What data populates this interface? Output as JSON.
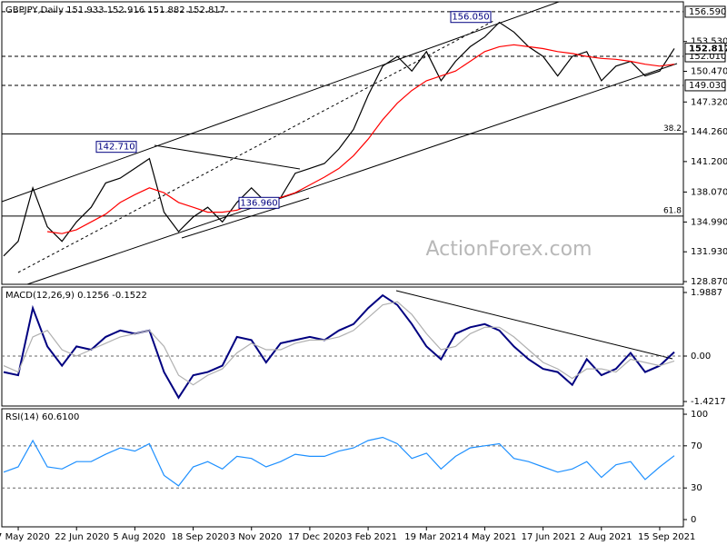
{
  "chart_data": [
    {
      "type": "line",
      "title": "GBPJPY,Daily  151.933 152.916 151.882 152.817",
      "watermark": "ActionForex.com",
      "ylim": [
        128.59,
        157.61
      ],
      "yticks": [
        {
          "value": 153.53,
          "label": "153.530"
        },
        {
          "value": 150.47,
          "label": "150.470"
        },
        {
          "value": 147.32,
          "label": "147.320"
        },
        {
          "value": 144.26,
          "label": "144.260"
        },
        {
          "value": 141.2,
          "label": "141.200"
        },
        {
          "value": 138.07,
          "label": "138.070"
        },
        {
          "value": 134.99,
          "label": "134.990"
        },
        {
          "value": 131.93,
          "label": "131.930"
        },
        {
          "value": 128.87,
          "label": "128.870"
        }
      ],
      "series": [
        {
          "color": "#000000",
          "values": [
            131.5,
            133.0,
            138.5,
            134.5,
            133.0,
            135.0,
            136.5,
            139.0,
            139.5,
            140.5,
            141.5,
            136.0,
            134.0,
            135.5,
            136.5,
            135.0,
            137.0,
            138.5,
            137.0,
            137.5,
            140.0,
            140.5,
            141.0,
            142.5,
            144.5,
            148.0,
            151.0,
            152.0,
            150.5,
            152.5,
            149.5,
            151.5,
            153.0,
            154.0,
            155.5,
            154.5,
            153.0,
            152.0,
            150.0,
            152.0,
            152.5,
            149.5,
            151.0,
            151.5,
            150.0,
            150.5,
            152.817
          ]
        },
        {
          "color": "#ff0000",
          "values": [
            null,
            null,
            null,
            134.0,
            133.8,
            134.2,
            135.0,
            135.8,
            137.0,
            137.8,
            138.5,
            138.0,
            137.0,
            136.5,
            136.0,
            136.0,
            136.2,
            136.8,
            137.2,
            137.5,
            138.0,
            138.8,
            139.6,
            140.5,
            141.8,
            143.5,
            145.5,
            147.2,
            148.5,
            149.5,
            150.0,
            150.5,
            151.5,
            152.5,
            153.0,
            153.2,
            153.0,
            152.8,
            152.5,
            152.3,
            152.0,
            151.8,
            151.7,
            151.5,
            151.2,
            151.0,
            151.2
          ]
        }
      ],
      "levels": [
        {
          "value": 156.59,
          "label": "156.590"
        },
        {
          "value": 152.01,
          "label": "152.010"
        },
        {
          "value": 149.03,
          "label": "149.030"
        }
      ],
      "fib_levels": [
        {
          "value": 144.05,
          "ratio": 38.2
        },
        {
          "value": 135.6,
          "ratio": 61.8
        }
      ],
      "annotations": [
        {
          "value": 156.05,
          "label": "156.050"
        },
        {
          "value": 142.71,
          "label": "142.710"
        },
        {
          "value": 136.96,
          "label": "136.960"
        }
      ]
    },
    {
      "type": "line",
      "title": "MACD(12,26,9) 0.1256 -0.1522",
      "ylim": [
        -1.5625,
        2.159
      ],
      "grid": true,
      "yticks": [
        1.9887,
        {
          "value": 0,
          "label": "0.00"
        },
        -1.4217
      ],
      "series": [
        {
          "color": "#000080",
          "values": [
            -0.5,
            -0.6,
            1.5,
            0.3,
            -0.3,
            0.3,
            0.2,
            0.6,
            0.8,
            0.7,
            0.8,
            -0.5,
            -1.3,
            -0.6,
            -0.5,
            -0.3,
            0.6,
            0.5,
            -0.2,
            0.4,
            0.5,
            0.6,
            0.5,
            0.8,
            1.0,
            1.5,
            1.9,
            1.6,
            1.0,
            0.3,
            -0.1,
            0.7,
            0.9,
            1.0,
            0.8,
            0.3,
            -0.1,
            -0.4,
            -0.5,
            -0.9,
            -0.1,
            -0.6,
            -0.4,
            0.1,
            -0.5,
            -0.3,
            0.1256
          ]
        },
        {
          "color": "#b0b0b0",
          "values": [
            -0.3,
            -0.5,
            0.6,
            0.8,
            0.2,
            0.0,
            0.2,
            0.4,
            0.6,
            0.7,
            0.8,
            0.3,
            -0.6,
            -0.9,
            -0.6,
            -0.4,
            0.1,
            0.4,
            0.2,
            0.2,
            0.4,
            0.5,
            0.5,
            0.6,
            0.8,
            1.2,
            1.6,
            1.7,
            1.3,
            0.7,
            0.2,
            0.3,
            0.7,
            0.9,
            0.9,
            0.6,
            0.2,
            -0.2,
            -0.4,
            -0.7,
            -0.4,
            -0.4,
            -0.5,
            -0.1,
            -0.2,
            -0.3,
            -0.1522
          ]
        }
      ]
    },
    {
      "type": "line",
      "title": "RSI(14) 60.6100",
      "ylim": [
        -6.9,
        105.2
      ],
      "grid": true,
      "yticks": [
        100,
        70,
        30,
        0
      ],
      "categories": [
        null,
        "7 May 2020",
        null,
        null,
        null,
        "22 Jun 2020",
        null,
        null,
        null,
        "5 Aug 2020",
        null,
        null,
        null,
        "18 Sep 2020",
        null,
        null,
        null,
        "3 Nov 2020",
        null,
        null,
        null,
        "17 Dec 2020",
        null,
        null,
        null,
        "3 Feb 2021",
        null,
        null,
        null,
        "19 Mar 2021",
        null,
        null,
        null,
        "4 May 2021",
        null,
        null,
        null,
        "17 Jun 2021",
        null,
        null,
        null,
        "2 Aug 2021",
        null,
        null,
        null,
        "15 Sep 2021",
        null
      ],
      "series": [
        {
          "color": "#1e90ff",
          "values": [
            45,
            50,
            75,
            50,
            48,
            55,
            55,
            62,
            68,
            65,
            72,
            42,
            32,
            50,
            55,
            48,
            60,
            58,
            50,
            55,
            62,
            60,
            60,
            65,
            68,
            75,
            78,
            72,
            58,
            63,
            48,
            60,
            68,
            70,
            72,
            58,
            55,
            50,
            45,
            48,
            55,
            40,
            52,
            55,
            38,
            50,
            60.61
          ]
        }
      ]
    }
  ]
}
